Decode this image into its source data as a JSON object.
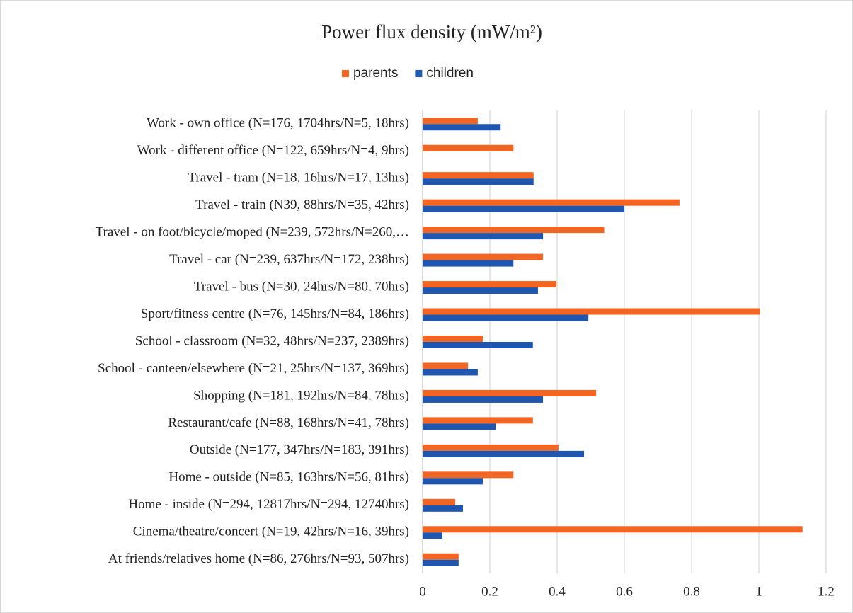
{
  "chart_data": {
    "type": "hbar",
    "title": "Power flux density (mW/m²)",
    "categories": [
      "Work - own office (N=176, 1704hrs/N=5, 18hrs)",
      "Work - different office (N=122, 659hrs/N=4, 9hrs)",
      "Travel - tram (N=18, 16hrs/N=17, 13hrs)",
      "Travel - train (N39, 88hrs/N=35, 42hrs)",
      "Travel - on foot/bicycle/moped (N=239, 572hrs/N=260,…",
      "Travel - car (N=239, 637hrs/N=172, 238hrs)",
      "Travel - bus (N=30, 24hrs/N=80, 70hrs)",
      "Sport/fitness centre (N=76, 145hrs/N=84, 186hrs)",
      "School - classroom (N=32, 48hrs/N=237, 2389hrs)",
      "School - canteen/elsewhere (N=21, 25hrs/N=137, 369hrs)",
      "Shopping (N=181, 192hrs/N=84, 78hrs)",
      "Restaurant/cafe (N=88, 168hrs/N=41, 78hrs)",
      "Outside (N=177, 347hrs/N=183, 391hrs)",
      "Home - outside (N=85, 163hrs/N=56, 81hrs)",
      "Home - inside (N=294, 12817hrs/N=294, 12740hrs)",
      "Cinema/theatre/concert (N=19, 42hrs/N=16, 39hrs)",
      "At friends/relatives home (N=86, 276hrs/N=93, 507hrs)"
    ],
    "series": [
      {
        "name": "parents",
        "color": "#f26522",
        "values": [
          0.164,
          0.27,
          0.33,
          0.764,
          0.54,
          0.358,
          0.398,
          1.003,
          0.179,
          0.135,
          0.516,
          0.328,
          0.404,
          0.27,
          0.097,
          1.13,
          0.107
        ]
      },
      {
        "name": "children",
        "color": "#1f57b0",
        "values": [
          0.232,
          null,
          0.33,
          0.6,
          0.358,
          0.27,
          0.343,
          0.493,
          0.328,
          0.164,
          0.358,
          0.217,
          0.48,
          0.179,
          0.12,
          0.059,
          0.107
        ]
      }
    ],
    "xlim": [
      0,
      1.2
    ],
    "xticks": [
      0,
      0.2,
      0.4,
      0.6,
      0.8,
      1,
      1.2
    ],
    "grid": true,
    "legend": "top"
  }
}
